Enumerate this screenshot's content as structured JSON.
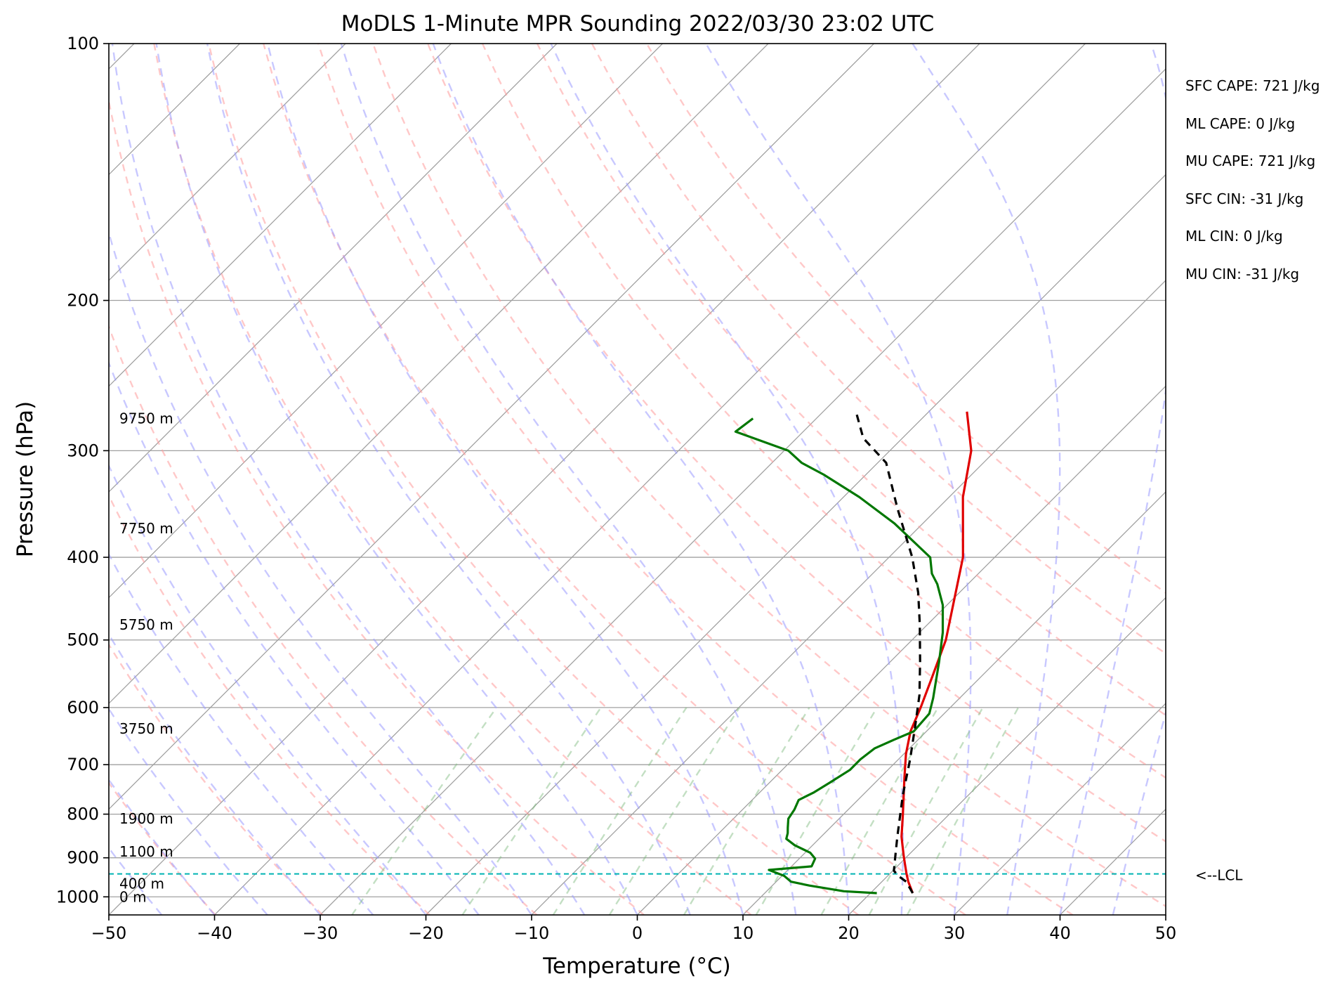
{
  "chart_data": {
    "type": "line",
    "title": "MoDLS 1-Minute MPR Sounding 2022/03/30 23:02 UTC",
    "xlabel": "Temperature (°C)",
    "ylabel": "Pressure (hPa)",
    "xlim": [
      -50,
      50
    ],
    "ylim": [
      1050,
      100
    ],
    "yscale": "log",
    "skew_angle_deg": 45,
    "grid": true,
    "x_ticks": [
      -50,
      -40,
      -30,
      -20,
      -10,
      0,
      10,
      20,
      30,
      40,
      50
    ],
    "x_tick_labels": [
      "−50",
      "−40",
      "−30",
      "−20",
      "−10",
      "0",
      "10",
      "20",
      "30",
      "40",
      "50"
    ],
    "y_ticks": [
      100,
      200,
      300,
      400,
      500,
      600,
      700,
      800,
      900,
      1000
    ],
    "y_tick_labels": [
      "100",
      "200",
      "300",
      "400",
      "500",
      "600",
      "700",
      "800",
      "900",
      "1000"
    ],
    "series": [
      {
        "color": "#e00000",
        "style": "solid",
        "points": [
          [
            24,
            990
          ],
          [
            22.5,
            960
          ],
          [
            21.6,
            940
          ],
          [
            20.5,
            915
          ],
          [
            19.7,
            897
          ],
          [
            18.5,
            870
          ],
          [
            17.6,
            850
          ],
          [
            15.6,
            800
          ],
          [
            12.3,
            725
          ],
          [
            10.2,
            680
          ],
          [
            8.5,
            640
          ],
          [
            7.2,
            600
          ],
          [
            5.5,
            555
          ],
          [
            3.2,
            500
          ],
          [
            -3.0,
            400
          ],
          [
            -8.7,
            340
          ],
          [
            -12.3,
            300
          ],
          [
            -16.4,
            270
          ]
        ]
      },
      {
        "color": "#007700",
        "style": "solid",
        "points": [
          [
            20.6,
            990
          ],
          [
            17.3,
            985
          ],
          [
            13.5,
            970
          ],
          [
            11.4,
            960
          ],
          [
            10.2,
            945
          ],
          [
            8.2,
            930
          ],
          [
            11.9,
            921
          ],
          [
            11.5,
            902
          ],
          [
            10.5,
            888
          ],
          [
            8.3,
            870
          ],
          [
            6.9,
            855
          ],
          [
            6.5,
            842
          ],
          [
            6.0,
            830
          ],
          [
            5.2,
            810
          ],
          [
            4.9,
            790
          ],
          [
            4.4,
            770
          ],
          [
            5.1,
            755
          ],
          [
            5.7,
            735
          ],
          [
            6.4,
            710
          ],
          [
            6.4,
            690
          ],
          [
            6.7,
            670
          ],
          [
            7.7,
            655
          ],
          [
            8.8,
            640
          ],
          [
            8.6,
            610
          ],
          [
            7.5,
            585
          ],
          [
            4.6,
            530
          ],
          [
            2.2,
            490
          ],
          [
            -0.4,
            455
          ],
          [
            -2.9,
            430
          ],
          [
            -4.4,
            418
          ],
          [
            -6.1,
            400
          ],
          [
            -12.7,
            365
          ],
          [
            -18.5,
            340
          ],
          [
            -24.0,
            320
          ],
          [
            -27.2,
            310
          ],
          [
            -29.6,
            300
          ],
          [
            -36.4,
            285
          ],
          [
            -36.0,
            275
          ]
        ]
      },
      {
        "color": "#000000",
        "style": "dashed",
        "points": [
          [
            24,
            990
          ],
          [
            22.3,
            960
          ],
          [
            21.0,
            945
          ],
          [
            20.1,
            932
          ],
          [
            19.0,
            900
          ],
          [
            17.2,
            850
          ],
          [
            13.8,
            760
          ],
          [
            11.1,
            690
          ],
          [
            8.4,
            630
          ],
          [
            5.9,
            580
          ],
          [
            2.8,
            530
          ],
          [
            -0.7,
            480
          ],
          [
            -3.9,
            440
          ],
          [
            -7.8,
            400
          ],
          [
            -13.9,
            350
          ],
          [
            -19.2,
            310
          ],
          [
            -23.7,
            290
          ],
          [
            -26.9,
            270
          ]
        ]
      }
    ],
    "annotations": {
      "heights": [
        {
          "label": "0 m",
          "p": 1000
        },
        {
          "label": "400 m",
          "p": 965
        },
        {
          "label": "1100 m",
          "p": 885
        },
        {
          "label": "1900 m",
          "p": 810
        },
        {
          "label": "3750 m",
          "p": 635
        },
        {
          "label": "5750 m",
          "p": 480
        },
        {
          "label": "7750 m",
          "p": 370
        },
        {
          "label": "9750 m",
          "p": 275
        }
      ],
      "lcl": {
        "label": "<--LCL",
        "p": 940,
        "color": "#00b3b3"
      },
      "stats": [
        "SFC CAPE: 721 J/kg",
        "ML CAPE: 0 J/kg",
        "MU CAPE: 721 J/kg",
        "SFC CIN: -31 J/kg",
        "ML CIN: 0 J/kg",
        "MU CIN: -31 J/kg"
      ]
    },
    "reference_lines": {
      "isotherms": {
        "color": "#a0a0a0",
        "step_c": 10,
        "from": -150,
        "to": 50
      },
      "dry_adiabats": {
        "color": "#ff9a9a",
        "theta_k": [
          230,
          240,
          250,
          260,
          270,
          280,
          290,
          300,
          310,
          320,
          330,
          340,
          350,
          360,
          370
        ]
      },
      "moist_adiabats": {
        "color": "#9a9aff",
        "start_c": [
          -50,
          -45,
          -40,
          -35,
          -30,
          -25,
          -20,
          -15,
          -10,
          -5,
          0,
          5,
          10,
          15,
          20,
          25,
          30,
          35,
          40,
          45
        ]
      },
      "mixing_ratio": {
        "color": "#7ab87a",
        "g_per_kg": [
          0.4,
          1,
          2,
          3,
          5,
          8,
          12,
          16,
          20
        ],
        "top_p": 600
      }
    }
  },
  "colors": {
    "temperature": "#e00000",
    "dewpoint": "#007700",
    "parcel": "#000000",
    "lcl": "#00b3b3",
    "isotherm": "#a0a0a0",
    "dry_adiabat": "#ff9a9a",
    "moist_adiabat": "#9a9aff",
    "mixing_ratio": "#7ab87a"
  }
}
